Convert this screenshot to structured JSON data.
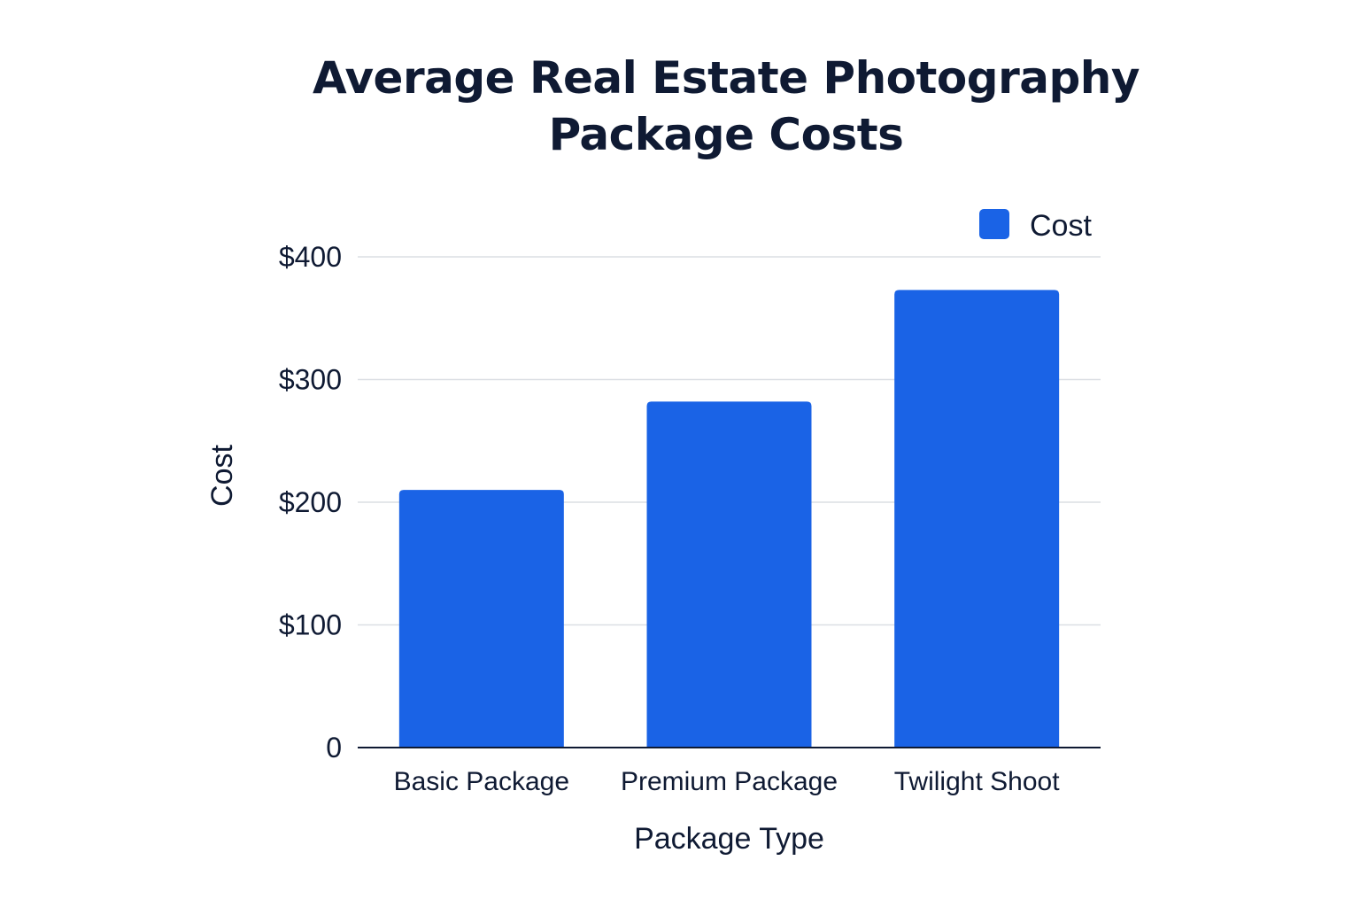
{
  "chart_data": {
    "type": "bar",
    "title_lines": [
      "Average Real Estate Photography",
      "Package Costs"
    ],
    "categories": [
      "Basic Package",
      "Premium Package",
      "Twilight Shoot"
    ],
    "series": [
      {
        "name": "Cost",
        "values": [
          210,
          282,
          373
        ],
        "color": "#1a63e6"
      }
    ],
    "xlabel": "Package Type",
    "ylabel": "Cost",
    "ylim": [
      0,
      400
    ],
    "yticks": [
      0,
      100,
      200,
      300,
      400
    ],
    "ytick_labels": [
      "0",
      "$100",
      "$200",
      "$300",
      "$400"
    ],
    "grid": true,
    "legend_position": "top-right"
  }
}
